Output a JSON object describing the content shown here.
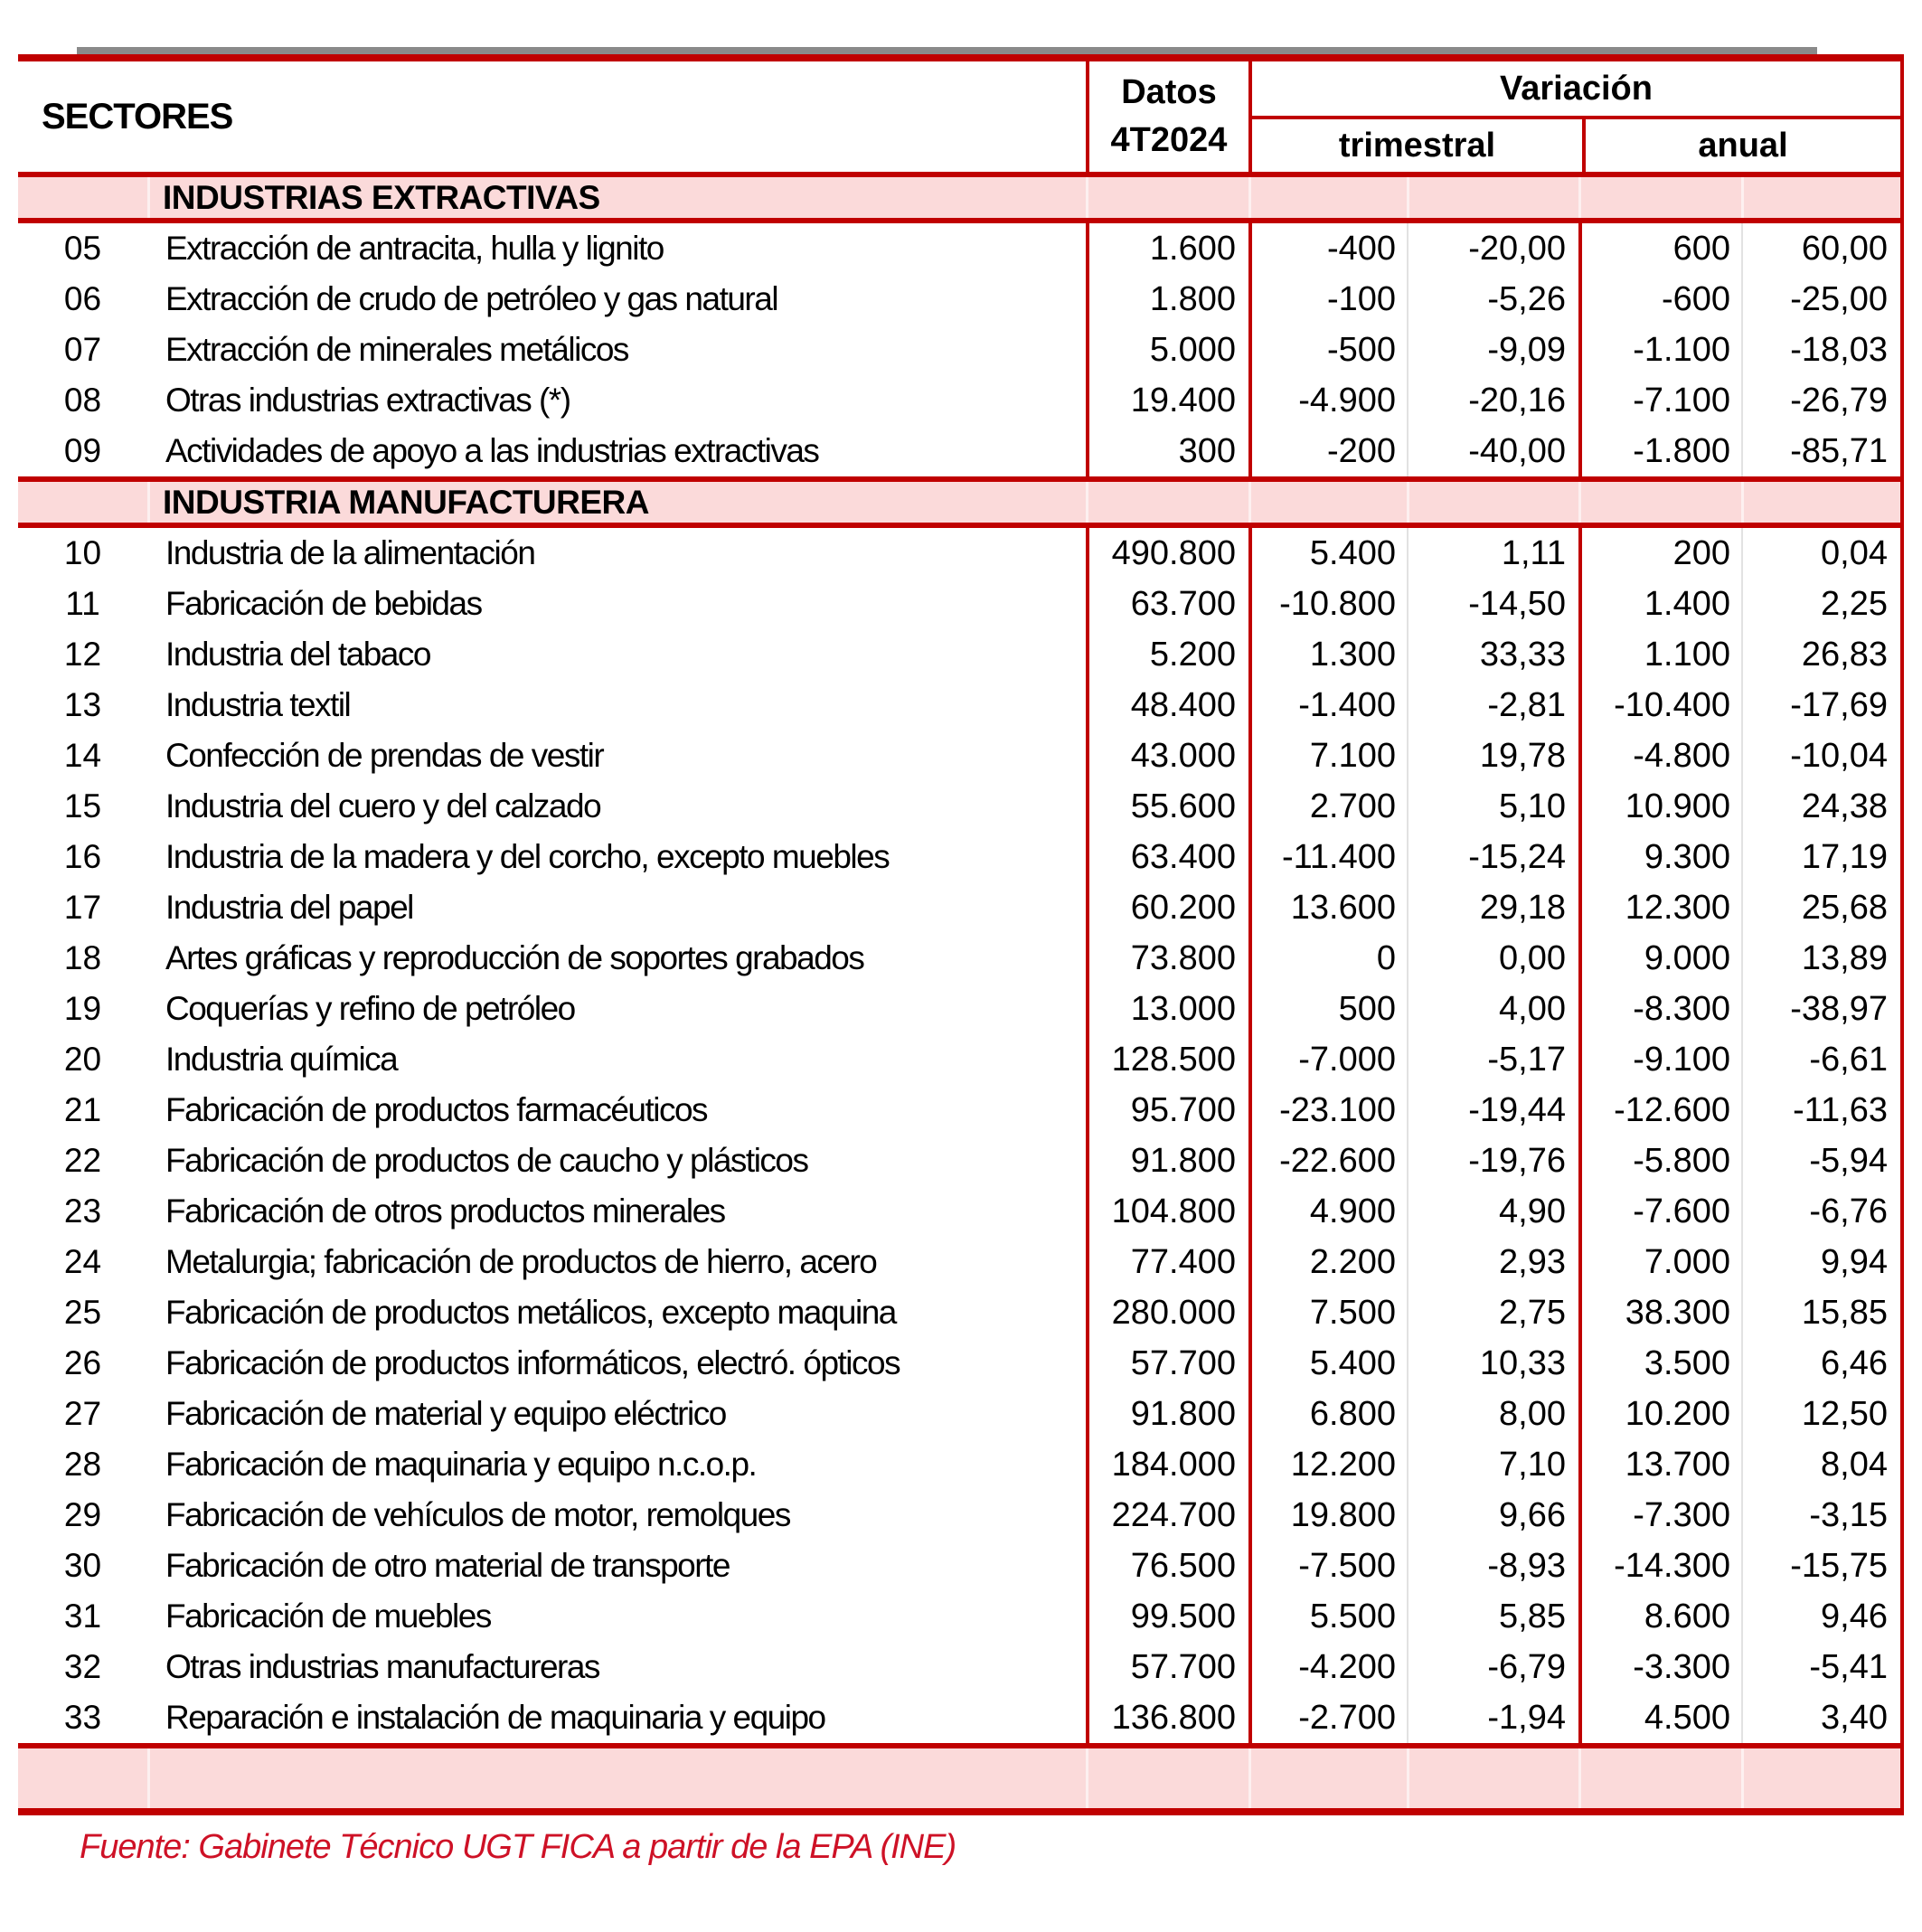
{
  "table": {
    "header": {
      "sectores": "SECTORES",
      "datos_line1": "Datos",
      "datos_line2": "4T2024",
      "variacion": "Variación",
      "trimestral": "trimestral",
      "anual": "anual"
    },
    "sections": [
      {
        "title": "INDUSTRIAS EXTRACTIVAS",
        "rows": [
          {
            "code": "05",
            "label": "Extracción de antracita, hulla y lignito",
            "datos": "1.600",
            "trim_abs": "-400",
            "trim_pct": "-20,00",
            "anual_abs": "600",
            "anual_pct": "60,00"
          },
          {
            "code": "06",
            "label": "Extracción de crudo de petróleo y gas natural",
            "datos": "1.800",
            "trim_abs": "-100",
            "trim_pct": "-5,26",
            "anual_abs": "-600",
            "anual_pct": "-25,00"
          },
          {
            "code": "07",
            "label": "Extracción de minerales metálicos",
            "datos": "5.000",
            "trim_abs": "-500",
            "trim_pct": "-9,09",
            "anual_abs": "-1.100",
            "anual_pct": "-18,03"
          },
          {
            "code": "08",
            "label": "Otras industrias extractivas (*)",
            "datos": "19.400",
            "trim_abs": "-4.900",
            "trim_pct": "-20,16",
            "anual_abs": "-7.100",
            "anual_pct": "-26,79"
          },
          {
            "code": "09",
            "label": "Actividades de apoyo a las industrias extractivas",
            "datos": "300",
            "trim_abs": "-200",
            "trim_pct": "-40,00",
            "anual_abs": "-1.800",
            "anual_pct": "-85,71"
          }
        ]
      },
      {
        "title": "INDUSTRIA MANUFACTURERA",
        "rows": [
          {
            "code": "10",
            "label": "Industria de la alimentación",
            "datos": "490.800",
            "trim_abs": "5.400",
            "trim_pct": "1,11",
            "anual_abs": "200",
            "anual_pct": "0,04"
          },
          {
            "code": "11",
            "label": "Fabricación de bebidas",
            "datos": "63.700",
            "trim_abs": "-10.800",
            "trim_pct": "-14,50",
            "anual_abs": "1.400",
            "anual_pct": "2,25"
          },
          {
            "code": "12",
            "label": "Industria del tabaco",
            "datos": "5.200",
            "trim_abs": "1.300",
            "trim_pct": "33,33",
            "anual_abs": "1.100",
            "anual_pct": "26,83"
          },
          {
            "code": "13",
            "label": "Industria textil",
            "datos": "48.400",
            "trim_abs": "-1.400",
            "trim_pct": "-2,81",
            "anual_abs": "-10.400",
            "anual_pct": "-17,69"
          },
          {
            "code": "14",
            "label": "Confección de prendas de vestir",
            "datos": "43.000",
            "trim_abs": "7.100",
            "trim_pct": "19,78",
            "anual_abs": "-4.800",
            "anual_pct": "-10,04"
          },
          {
            "code": "15",
            "label": "Industria del cuero y del calzado",
            "datos": "55.600",
            "trim_abs": "2.700",
            "trim_pct": "5,10",
            "anual_abs": "10.900",
            "anual_pct": "24,38"
          },
          {
            "code": "16",
            "label": "Industria de la madera y del corcho, excepto muebles",
            "datos": "63.400",
            "trim_abs": "-11.400",
            "trim_pct": "-15,24",
            "anual_abs": "9.300",
            "anual_pct": "17,19"
          },
          {
            "code": "17",
            "label": "Industria del papel",
            "datos": "60.200",
            "trim_abs": "13.600",
            "trim_pct": "29,18",
            "anual_abs": "12.300",
            "anual_pct": "25,68"
          },
          {
            "code": "18",
            "label": "Artes gráficas y reproducción de soportes grabados",
            "datos": "73.800",
            "trim_abs": "0",
            "trim_pct": "0,00",
            "anual_abs": "9.000",
            "anual_pct": "13,89"
          },
          {
            "code": "19",
            "label": "Coquerías y refino de petróleo",
            "datos": "13.000",
            "trim_abs": "500",
            "trim_pct": "4,00",
            "anual_abs": "-8.300",
            "anual_pct": "-38,97"
          },
          {
            "code": "20",
            "label": "Industria química",
            "datos": "128.500",
            "trim_abs": "-7.000",
            "trim_pct": "-5,17",
            "anual_abs": "-9.100",
            "anual_pct": "-6,61"
          },
          {
            "code": "21",
            "label": "Fabricación de productos farmacéuticos",
            "datos": "95.700",
            "trim_abs": "-23.100",
            "trim_pct": "-19,44",
            "anual_abs": "-12.600",
            "anual_pct": "-11,63"
          },
          {
            "code": "22",
            "label": "Fabricación de productos de caucho y plásticos",
            "datos": "91.800",
            "trim_abs": "-22.600",
            "trim_pct": "-19,76",
            "anual_abs": "-5.800",
            "anual_pct": "-5,94"
          },
          {
            "code": "23",
            "label": "Fabricación de otros productos minerales",
            "datos": "104.800",
            "trim_abs": "4.900",
            "trim_pct": "4,90",
            "anual_abs": "-7.600",
            "anual_pct": "-6,76"
          },
          {
            "code": "24",
            "label": "Metalurgia; fabricación de productos de hierro, acero",
            "datos": "77.400",
            "trim_abs": "2.200",
            "trim_pct": "2,93",
            "anual_abs": "7.000",
            "anual_pct": "9,94"
          },
          {
            "code": "25",
            "label": "Fabricación de productos metálicos, excepto maquina",
            "datos": "280.000",
            "trim_abs": "7.500",
            "trim_pct": "2,75",
            "anual_abs": "38.300",
            "anual_pct": "15,85"
          },
          {
            "code": "26",
            "label": "Fabricación de productos informáticos, electró. ópticos",
            "datos": "57.700",
            "trim_abs": "5.400",
            "trim_pct": "10,33",
            "anual_abs": "3.500",
            "anual_pct": "6,46"
          },
          {
            "code": "27",
            "label": "Fabricación de material y equipo eléctrico",
            "datos": "91.800",
            "trim_abs": "6.800",
            "trim_pct": "8,00",
            "anual_abs": "10.200",
            "anual_pct": "12,50"
          },
          {
            "code": "28",
            "label": "Fabricación de maquinaria y equipo n.c.o.p.",
            "datos": "184.000",
            "trim_abs": "12.200",
            "trim_pct": "7,10",
            "anual_abs": "13.700",
            "anual_pct": "8,04"
          },
          {
            "code": "29",
            "label": "Fabricación de vehículos de motor, remolques",
            "datos": "224.700",
            "trim_abs": "19.800",
            "trim_pct": "9,66",
            "anual_abs": "-7.300",
            "anual_pct": "-3,15"
          },
          {
            "code": "30",
            "label": "Fabricación de otro material de transporte",
            "datos": "76.500",
            "trim_abs": "-7.500",
            "trim_pct": "-8,93",
            "anual_abs": "-14.300",
            "anual_pct": "-15,75"
          },
          {
            "code": "31",
            "label": "Fabricación de muebles",
            "datos": "99.500",
            "trim_abs": "5.500",
            "trim_pct": "5,85",
            "anual_abs": "8.600",
            "anual_pct": "9,46"
          },
          {
            "code": "32",
            "label": "Otras industrias manufactureras",
            "datos": "57.700",
            "trim_abs": "-4.200",
            "trim_pct": "-6,79",
            "anual_abs": "-3.300",
            "anual_pct": "-5,41"
          },
          {
            "code": "33",
            "label": "Reparación e instalación de maquinaria y equipo",
            "datos": "136.800",
            "trim_abs": "-2.700",
            "trim_pct": "-1,94",
            "anual_abs": "4.500",
            "anual_pct": "3,40"
          }
        ]
      }
    ]
  },
  "footer": {
    "source": "Fuente: Gabinete Técnico UGT FICA a partir de la EPA (INE)"
  },
  "colors": {
    "border_red": "#C00000",
    "band_pink": "#FBDADA",
    "footer_red": "#CE1126",
    "shadow_gray": "#8A8A8A"
  }
}
